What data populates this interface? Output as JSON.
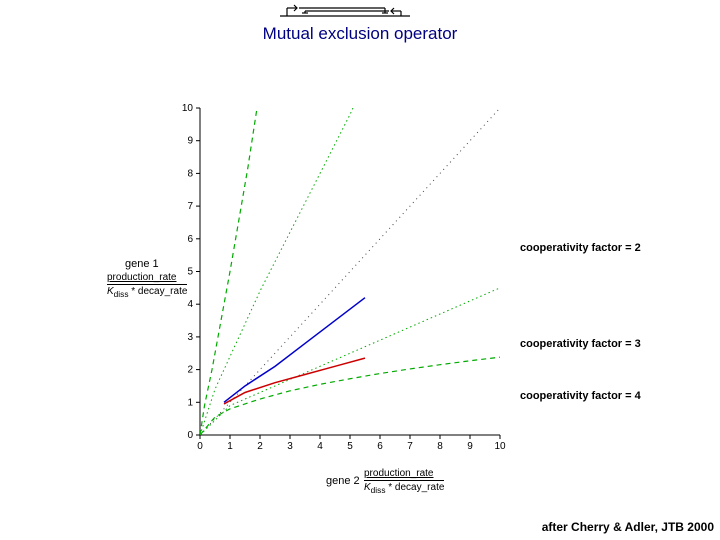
{
  "title": "Mutual exclusion operator",
  "citation": "after Cherry & Adler, JTB 2000",
  "gene1_label": "gene 1",
  "gene2_label": "gene 2",
  "fraction_num": "production_rate",
  "fraction_den_y": "K_diss * decay_rate",
  "fraction_den_x": "K_diss * decay_rate",
  "annotations": {
    "cf2": "cooperativity factor = 2",
    "cf3": "cooperativity factor = 3",
    "cf4": "cooperativity factor = 4"
  },
  "chart": {
    "type": "line",
    "xlim": [
      0,
      10
    ],
    "ylim": [
      0,
      10
    ],
    "xtick_step": 1,
    "ytick_step": 1,
    "background_color": "#ffffff",
    "axis_color": "#000000",
    "tick_fontsize": 10,
    "series": {
      "upper_green_dash": {
        "color": "#00aa00",
        "dash": "5,4",
        "width": 1.2,
        "points": [
          [
            0.0,
            0.0
          ],
          [
            0.15,
            0.9
          ],
          [
            0.4,
            2.0
          ],
          [
            0.7,
            3.5
          ],
          [
            1.0,
            5.0
          ],
          [
            1.3,
            6.6
          ],
          [
            1.6,
            8.2
          ],
          [
            1.9,
            10.0
          ]
        ]
      },
      "inner_green_dot1": {
        "color": "#00aa00",
        "dash": "1.5,3",
        "width": 1.0,
        "points": [
          [
            0.0,
            0.0
          ],
          [
            0.5,
            1.4
          ],
          [
            1.0,
            2.4
          ],
          [
            1.5,
            3.4
          ],
          [
            2.0,
            4.4
          ],
          [
            2.5,
            5.3
          ],
          [
            3.0,
            6.2
          ],
          [
            3.5,
            7.1
          ],
          [
            4.0,
            8.0
          ],
          [
            4.5,
            8.9
          ],
          [
            5.0,
            9.8
          ],
          [
            5.1,
            10.0
          ]
        ]
      },
      "diag_black_dot": {
        "color": "#444444",
        "dash": "1,4",
        "width": 1.0,
        "points": [
          [
            0,
            0
          ],
          [
            10,
            10
          ]
        ]
      },
      "blue_solid": {
        "color": "#0000cc",
        "dash": "",
        "width": 1.5,
        "points": [
          [
            0.8,
            1.0
          ],
          [
            1.5,
            1.5
          ],
          [
            2.5,
            2.1
          ],
          [
            3.5,
            2.8
          ],
          [
            4.5,
            3.5
          ],
          [
            5.5,
            4.2
          ]
        ]
      },
      "inner_green_dot2": {
        "color": "#00aa00",
        "dash": "1.5,3",
        "width": 1.0,
        "points": [
          [
            0.0,
            0.0
          ],
          [
            1.0,
            0.9
          ],
          [
            2.0,
            1.3
          ],
          [
            3.0,
            1.7
          ],
          [
            4.0,
            2.1
          ],
          [
            5.0,
            2.5
          ],
          [
            6.0,
            2.9
          ],
          [
            7.0,
            3.3
          ],
          [
            8.0,
            3.7
          ],
          [
            9.0,
            4.1
          ],
          [
            10.0,
            4.5
          ]
        ]
      },
      "red_solid": {
        "color": "#cc0000",
        "dash": "",
        "width": 1.5,
        "points": [
          [
            0.8,
            0.95
          ],
          [
            1.5,
            1.3
          ],
          [
            2.5,
            1.6
          ],
          [
            3.5,
            1.85
          ],
          [
            4.5,
            2.1
          ],
          [
            5.5,
            2.35
          ]
        ]
      },
      "lower_green_dash": {
        "color": "#00aa00",
        "dash": "5,4",
        "width": 1.2,
        "points": [
          [
            0.0,
            0.0
          ],
          [
            0.5,
            0.55
          ],
          [
            1.0,
            0.8
          ],
          [
            2.0,
            1.1
          ],
          [
            3.0,
            1.35
          ],
          [
            4.0,
            1.55
          ],
          [
            5.0,
            1.72
          ],
          [
            6.0,
            1.88
          ],
          [
            7.0,
            2.02
          ],
          [
            8.0,
            2.15
          ],
          [
            9.0,
            2.27
          ],
          [
            10.0,
            2.38
          ]
        ]
      }
    }
  },
  "diagram": {
    "line_color": "#000000"
  }
}
